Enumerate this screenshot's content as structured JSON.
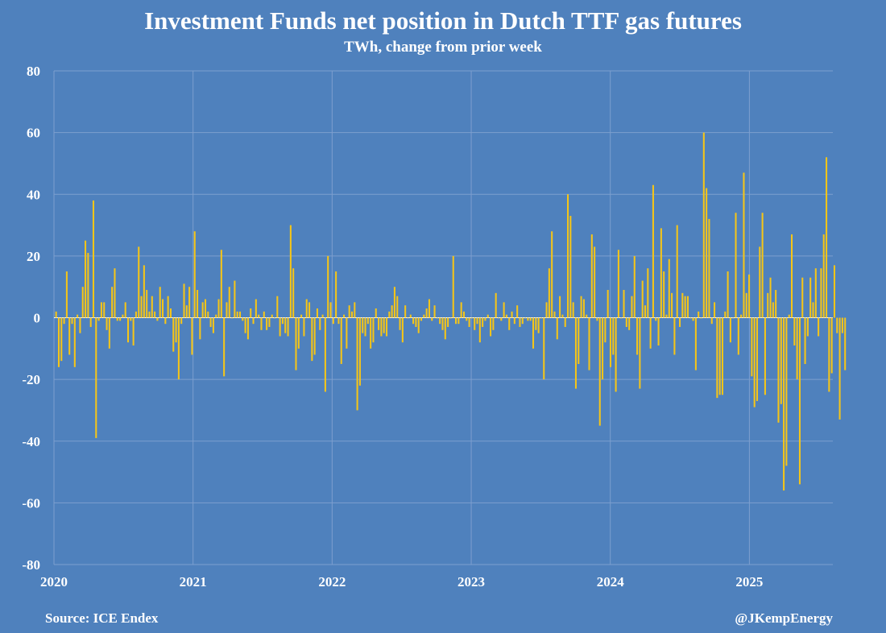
{
  "header": {
    "title": "Investment Funds net position in Dutch TTF gas futures",
    "subtitle": "TWh, change from prior week"
  },
  "footer": {
    "source": "Source: ICE Endex",
    "credit": "@JKempEnergy"
  },
  "colors": {
    "background": "#4f81bd",
    "bar": "#f5c518",
    "grid": "#7d9fcf",
    "text": "#ffffff"
  },
  "chart_data": {
    "type": "bar",
    "title": "Investment Funds net position in Dutch TTF gas futures",
    "subtitle": "TWh, change from prior week",
    "xlabel": "",
    "ylabel": "",
    "ylim": [
      -80,
      80
    ],
    "yticks": [
      -80,
      -60,
      -40,
      -20,
      0,
      20,
      40,
      60,
      80
    ],
    "xlim": [
      2020.0,
      2025.6
    ],
    "xticks": [
      "2020",
      "2021",
      "2022",
      "2023",
      "2024",
      "2025"
    ],
    "grid": true,
    "legend": "none",
    "bar_frequency": "weekly",
    "start_year": 2020,
    "values": [
      2,
      -16,
      -14,
      -2,
      15,
      -12,
      -2,
      -16,
      1,
      -5,
      10,
      25,
      21,
      -3,
      38,
      -39,
      -1,
      5,
      5,
      -4,
      -10,
      10,
      16,
      -1,
      -1,
      1,
      5,
      -8,
      -1,
      -9,
      2,
      23,
      7,
      17,
      9,
      2,
      7,
      2,
      -1,
      10,
      6,
      -2,
      7,
      3,
      -11,
      -8,
      -20,
      -2,
      11,
      4,
      10,
      -12,
      28,
      9,
      -7,
      5,
      6,
      2,
      -3,
      -5,
      1,
      6,
      22,
      -19,
      5,
      10,
      0,
      12,
      2,
      2,
      -1,
      -5,
      -7,
      3,
      -2,
      6,
      1,
      -4,
      2,
      -4,
      -3,
      1,
      0,
      7,
      -6,
      -2,
      -5,
      -6,
      30,
      16,
      -17,
      -10,
      1,
      -6,
      6,
      5,
      -14,
      -12,
      3,
      -4,
      1,
      -24,
      20,
      5,
      -2,
      15,
      -2,
      -15,
      1,
      -10,
      4,
      2,
      5,
      -30,
      -22,
      -5,
      -6,
      -2,
      -10,
      -8,
      3,
      -4,
      -6,
      -5,
      -6,
      2,
      4,
      10,
      7,
      -4,
      -8,
      4,
      0,
      1,
      -2,
      -3,
      -5,
      -1,
      1,
      3,
      6,
      -1,
      4,
      0,
      -2,
      -4,
      -7,
      -3,
      0,
      20,
      -2,
      -2,
      5,
      2,
      -1,
      -3,
      0,
      -4,
      -2,
      -8,
      -3,
      -1,
      1,
      -6,
      -4,
      8,
      0,
      -1,
      5,
      1,
      -4,
      2,
      -2,
      4,
      -3,
      -2,
      0,
      -1,
      -1,
      -10,
      -4,
      -5,
      0,
      -20,
      5,
      16,
      28,
      2,
      -7,
      7,
      1,
      -3,
      40,
      33,
      5,
      -23,
      -15,
      7,
      6,
      1,
      -17,
      27,
      23,
      -1,
      -35,
      -20,
      -8,
      9,
      -16,
      -12,
      -24,
      22,
      0,
      9,
      -3,
      -4,
      7,
      20,
      -12,
      -23,
      12,
      4,
      16,
      -10,
      43,
      -1,
      -9,
      29,
      15,
      1,
      19,
      8,
      -12,
      30,
      -3,
      8,
      7,
      7,
      0,
      -1,
      -17,
      2,
      0,
      60,
      42,
      32,
      -2,
      5,
      -26,
      -25,
      -25,
      2,
      15,
      -8,
      0,
      34,
      -12,
      1,
      47,
      8,
      14,
      -19,
      -29,
      -27,
      23,
      34,
      -25,
      8,
      13,
      5,
      9,
      -34,
      -28,
      -56,
      -48,
      1,
      27,
      -9,
      -20,
      -54,
      13,
      -15,
      -6,
      13,
      5,
      16,
      -6,
      16,
      27,
      52,
      -24,
      -18,
      17,
      -5,
      -33,
      -5,
      -17
    ]
  }
}
